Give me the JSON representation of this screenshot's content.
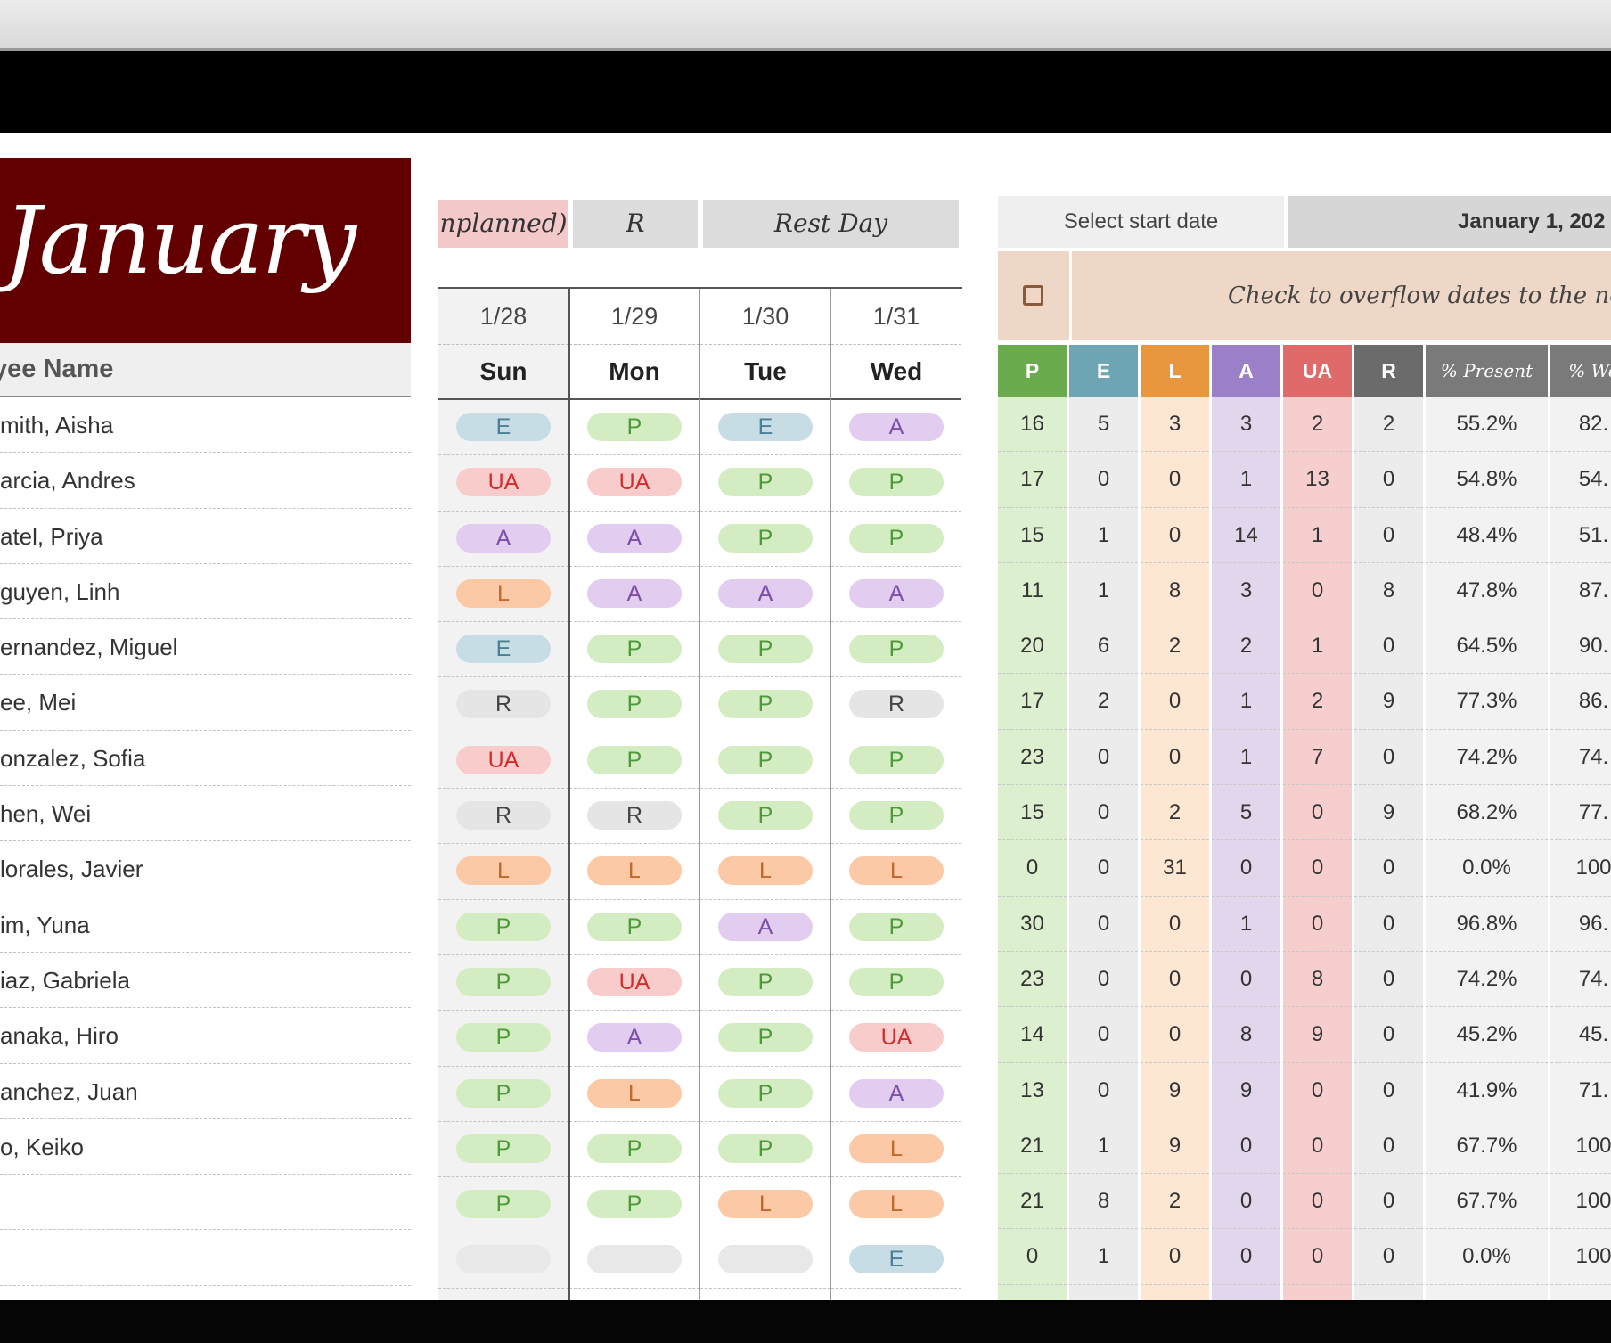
{
  "month_title": "January",
  "name_header": "yee Name",
  "employees": [
    "mith, Aisha",
    "arcia, Andres",
    "atel, Priya",
    "guyen, Linh",
    "ernandez, Miguel",
    "ee, Mei",
    "onzalez, Sofia",
    "hen, Wei",
    "lorales, Javier",
    "im, Yuna",
    "iaz, Gabriela",
    "anaka, Hiro",
    "anchez, Juan",
    "o, Keiko",
    "",
    ""
  ],
  "legend": [
    {
      "label": "nplanned)",
      "bg": "#f4c9c9"
    },
    {
      "label": "R",
      "bg": "#dcdcdc"
    },
    {
      "label": "Rest Day",
      "bg": "#dcdcdc"
    }
  ],
  "dates": [
    {
      "date": "1/28",
      "dow": "Sun"
    },
    {
      "date": "1/29",
      "dow": "Mon"
    },
    {
      "date": "1/30",
      "dow": "Tue"
    },
    {
      "date": "1/31",
      "dow": "Wed"
    }
  ],
  "attendance": [
    [
      "E",
      "P",
      "E",
      "A"
    ],
    [
      "UA",
      "UA",
      "P",
      "P"
    ],
    [
      "A",
      "A",
      "P",
      "P"
    ],
    [
      "L",
      "A",
      "A",
      "A"
    ],
    [
      "E",
      "P",
      "P",
      "P"
    ],
    [
      "R",
      "P",
      "P",
      "R"
    ],
    [
      "UA",
      "P",
      "P",
      "P"
    ],
    [
      "R",
      "R",
      "P",
      "P"
    ],
    [
      "L",
      "L",
      "L",
      "L"
    ],
    [
      "P",
      "P",
      "A",
      "P"
    ],
    [
      "P",
      "UA",
      "P",
      "P"
    ],
    [
      "P",
      "A",
      "P",
      "UA"
    ],
    [
      "P",
      "L",
      "P",
      "A"
    ],
    [
      "P",
      "P",
      "P",
      "L"
    ],
    [
      "P",
      "P",
      "L",
      "L"
    ],
    [
      "",
      "",
      "",
      "E"
    ]
  ],
  "status_colors": {
    "P": {
      "bg": "#d3ecc1",
      "fg": "#4e9a3a"
    },
    "E": {
      "bg": "#c6dde6",
      "fg": "#4b7f96"
    },
    "L": {
      "bg": "#fcc9a6",
      "fg": "#c0672c"
    },
    "A": {
      "bg": "#e2cdf0",
      "fg": "#7d4fa8"
    },
    "UA": {
      "bg": "#f9cccc",
      "fg": "#d62b2b"
    },
    "R": {
      "bg": "#e5e5e5",
      "fg": "#444444"
    },
    "": {
      "bg": "#e8e8e8",
      "fg": "#444444"
    }
  },
  "start_date": {
    "label": "Select start date",
    "value": "January 1, 202"
  },
  "overflow_text": "Check to overflow  dates to  the next mo",
  "summary": {
    "columns": [
      {
        "key": "P",
        "label": "P",
        "head": "#6aab4e",
        "body": "#dcefcf"
      },
      {
        "key": "E",
        "label": "E",
        "head": "#6ea5b5",
        "body": "#ececec"
      },
      {
        "key": "L",
        "label": "L",
        "head": "#e8973f",
        "body": "#fde6d2"
      },
      {
        "key": "A",
        "label": "A",
        "head": "#9b7fc9",
        "body": "#e2d6ec"
      },
      {
        "key": "UA",
        "label": "UA",
        "head": "#e06a6a",
        "body": "#f6cece"
      },
      {
        "key": "R",
        "label": "R",
        "head": "#6b6b6b",
        "body": "#ececec"
      },
      {
        "key": "pct_present",
        "label": "% Present",
        "head": "#7a7a7a",
        "body": "#f2f2f2"
      },
      {
        "key": "pct_w",
        "label": "% Wo",
        "head": "#7a7a7a",
        "body": "#f2f2f2"
      }
    ],
    "rows": [
      [
        "16",
        "5",
        "3",
        "3",
        "2",
        "2",
        "55.2%",
        "82."
      ],
      [
        "17",
        "0",
        "0",
        "1",
        "13",
        "0",
        "54.8%",
        "54."
      ],
      [
        "15",
        "1",
        "0",
        "14",
        "1",
        "0",
        "48.4%",
        "51."
      ],
      [
        "11",
        "1",
        "8",
        "3",
        "0",
        "8",
        "47.8%",
        "87."
      ],
      [
        "20",
        "6",
        "2",
        "2",
        "1",
        "0",
        "64.5%",
        "90."
      ],
      [
        "17",
        "2",
        "0",
        "1",
        "2",
        "9",
        "77.3%",
        "86."
      ],
      [
        "23",
        "0",
        "0",
        "1",
        "7",
        "0",
        "74.2%",
        "74."
      ],
      [
        "15",
        "0",
        "2",
        "5",
        "0",
        "9",
        "68.2%",
        "77."
      ],
      [
        "0",
        "0",
        "31",
        "0",
        "0",
        "0",
        "0.0%",
        "100"
      ],
      [
        "30",
        "0",
        "0",
        "1",
        "0",
        "0",
        "96.8%",
        "96."
      ],
      [
        "23",
        "0",
        "0",
        "0",
        "8",
        "0",
        "74.2%",
        "74."
      ],
      [
        "14",
        "0",
        "0",
        "8",
        "9",
        "0",
        "45.2%",
        "45."
      ],
      [
        "13",
        "0",
        "9",
        "9",
        "0",
        "0",
        "41.9%",
        "71."
      ],
      [
        "21",
        "1",
        "9",
        "0",
        "0",
        "0",
        "67.7%",
        "100"
      ],
      [
        "21",
        "8",
        "2",
        "0",
        "0",
        "0",
        "67.7%",
        "100"
      ],
      [
        "0",
        "1",
        "0",
        "0",
        "0",
        "0",
        "0.0%",
        "100"
      ]
    ]
  }
}
